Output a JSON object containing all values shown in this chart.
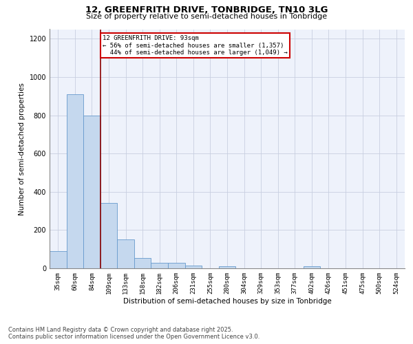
{
  "title": "12, GREENFRITH DRIVE, TONBRIDGE, TN10 3LG",
  "subtitle": "Size of property relative to semi-detached houses in Tonbridge",
  "xlabel": "Distribution of semi-detached houses by size in Tonbridge",
  "ylabel": "Number of semi-detached properties",
  "categories": [
    "35sqm",
    "60sqm",
    "84sqm",
    "109sqm",
    "133sqm",
    "158sqm",
    "182sqm",
    "206sqm",
    "231sqm",
    "255sqm",
    "280sqm",
    "304sqm",
    "329sqm",
    "353sqm",
    "377sqm",
    "402sqm",
    "426sqm",
    "451sqm",
    "475sqm",
    "500sqm",
    "524sqm"
  ],
  "values": [
    90,
    910,
    800,
    340,
    150,
    55,
    30,
    28,
    15,
    0,
    10,
    0,
    0,
    0,
    0,
    12,
    0,
    0,
    0,
    0,
    0
  ],
  "bar_color": "#c5d8ee",
  "bar_edge_color": "#6699cc",
  "property_label": "12 GREENFRITH DRIVE: 93sqm",
  "pct_smaller": 56,
  "pct_larger": 44,
  "count_smaller": 1357,
  "count_larger": 1049,
  "vline_color": "#8b0000",
  "annotation_box_color": "#cc0000",
  "vline_x": 2.5,
  "ylim": [
    0,
    1250
  ],
  "yticks": [
    0,
    200,
    400,
    600,
    800,
    1000,
    1200
  ],
  "footer_line1": "Contains HM Land Registry data © Crown copyright and database right 2025.",
  "footer_line2": "Contains public sector information licensed under the Open Government Licence v3.0.",
  "bg_color": "#eef2fb",
  "grid_color": "#c8cfe0",
  "title_fontsize": 9.5,
  "subtitle_fontsize": 8,
  "axis_label_fontsize": 7.5,
  "tick_fontsize": 6.5,
  "annotation_fontsize": 6.5,
  "footer_fontsize": 6
}
